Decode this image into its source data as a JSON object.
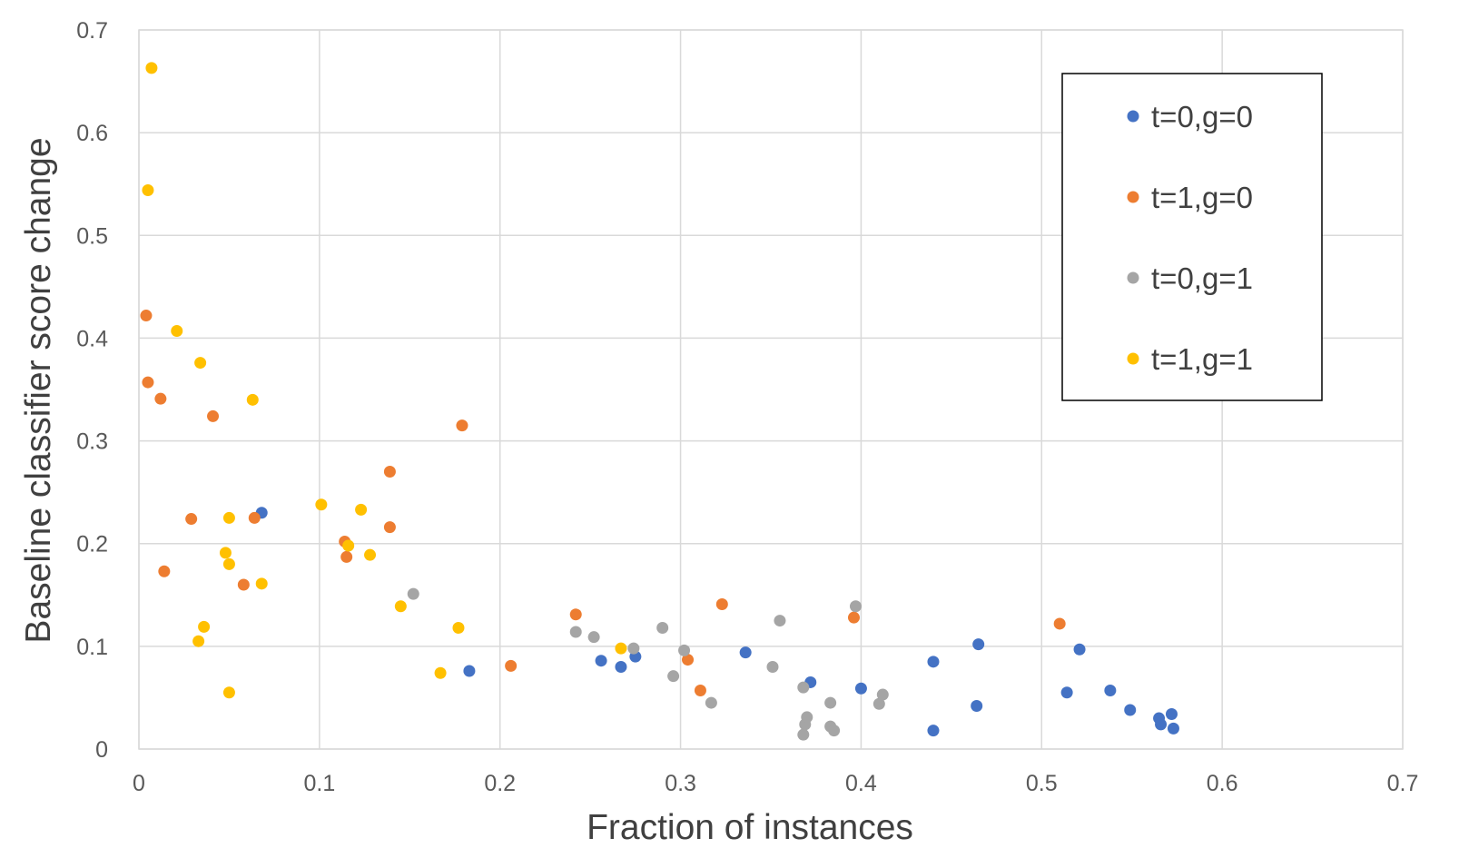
{
  "chart_data": {
    "type": "scatter",
    "title": "",
    "xlabel": "Fraction of instances",
    "ylabel": "Baseline classifier score change",
    "xlim": [
      0,
      0.7
    ],
    "ylim": [
      0,
      0.7
    ],
    "x_ticks": [
      0,
      0.1,
      0.2,
      0.3,
      0.4,
      0.5,
      0.6,
      0.7
    ],
    "y_ticks": [
      0,
      0.1,
      0.2,
      0.3,
      0.4,
      0.5,
      0.6,
      0.7
    ],
    "x_tick_labels": [
      "0",
      "0.1",
      "0.2",
      "0.3",
      "0.4",
      "0.5",
      "0.6",
      "0.7"
    ],
    "y_tick_labels": [
      "0",
      "0.1",
      "0.2",
      "0.3",
      "0.4",
      "0.5",
      "0.6",
      "0.7"
    ],
    "grid": true,
    "legend_position": "top-right",
    "series": [
      {
        "name": "t=0,g=0",
        "color": "#4472C4",
        "points": [
          [
            0.068,
            0.23
          ],
          [
            0.183,
            0.076
          ],
          [
            0.256,
            0.086
          ],
          [
            0.267,
            0.08
          ],
          [
            0.275,
            0.09
          ],
          [
            0.336,
            0.094
          ],
          [
            0.372,
            0.065
          ],
          [
            0.4,
            0.059
          ],
          [
            0.44,
            0.018
          ],
          [
            0.44,
            0.085
          ],
          [
            0.464,
            0.042
          ],
          [
            0.465,
            0.102
          ],
          [
            0.514,
            0.055
          ],
          [
            0.521,
            0.097
          ],
          [
            0.538,
            0.057
          ],
          [
            0.549,
            0.038
          ],
          [
            0.565,
            0.03
          ],
          [
            0.566,
            0.024
          ],
          [
            0.572,
            0.034
          ],
          [
            0.573,
            0.02
          ]
        ]
      },
      {
        "name": "t=1,g=0",
        "color": "#ED7D31",
        "points": [
          [
            0.004,
            0.422
          ],
          [
            0.005,
            0.357
          ],
          [
            0.012,
            0.341
          ],
          [
            0.014,
            0.173
          ],
          [
            0.029,
            0.224
          ],
          [
            0.041,
            0.324
          ],
          [
            0.058,
            0.16
          ],
          [
            0.064,
            0.225
          ],
          [
            0.114,
            0.202
          ],
          [
            0.115,
            0.187
          ],
          [
            0.139,
            0.27
          ],
          [
            0.139,
            0.216
          ],
          [
            0.179,
            0.315
          ],
          [
            0.206,
            0.081
          ],
          [
            0.242,
            0.131
          ],
          [
            0.304,
            0.087
          ],
          [
            0.311,
            0.057
          ],
          [
            0.323,
            0.141
          ],
          [
            0.396,
            0.128
          ],
          [
            0.51,
            0.122
          ]
        ]
      },
      {
        "name": "t=0,g=1",
        "color": "#A5A5A5",
        "points": [
          [
            0.152,
            0.151
          ],
          [
            0.242,
            0.114
          ],
          [
            0.252,
            0.109
          ],
          [
            0.274,
            0.098
          ],
          [
            0.29,
            0.118
          ],
          [
            0.296,
            0.071
          ],
          [
            0.302,
            0.096
          ],
          [
            0.317,
            0.045
          ],
          [
            0.351,
            0.08
          ],
          [
            0.355,
            0.125
          ],
          [
            0.368,
            0.06
          ],
          [
            0.368,
            0.014
          ],
          [
            0.369,
            0.024
          ],
          [
            0.37,
            0.031
          ],
          [
            0.383,
            0.045
          ],
          [
            0.383,
            0.022
          ],
          [
            0.385,
            0.018
          ],
          [
            0.397,
            0.139
          ],
          [
            0.41,
            0.044
          ],
          [
            0.412,
            0.053
          ]
        ]
      },
      {
        "name": "t=1,g=1",
        "color": "#FFC000",
        "points": [
          [
            0.007,
            0.663
          ],
          [
            0.005,
            0.544
          ],
          [
            0.021,
            0.407
          ],
          [
            0.034,
            0.376
          ],
          [
            0.063,
            0.34
          ],
          [
            0.05,
            0.225
          ],
          [
            0.048,
            0.191
          ],
          [
            0.05,
            0.18
          ],
          [
            0.068,
            0.161
          ],
          [
            0.036,
            0.119
          ],
          [
            0.033,
            0.105
          ],
          [
            0.05,
            0.055
          ],
          [
            0.101,
            0.238
          ],
          [
            0.123,
            0.233
          ],
          [
            0.116,
            0.198
          ],
          [
            0.128,
            0.189
          ],
          [
            0.145,
            0.139
          ],
          [
            0.177,
            0.118
          ],
          [
            0.167,
            0.074
          ],
          [
            0.267,
            0.098
          ]
        ]
      }
    ]
  }
}
